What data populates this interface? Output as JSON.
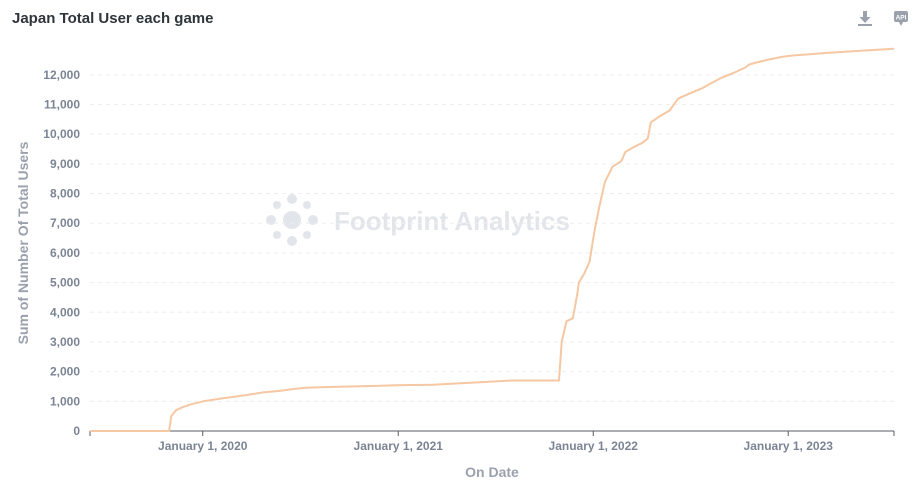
{
  "card": {
    "title": "Japan Total User each game",
    "toolbar": [
      {
        "name": "download-icon",
        "label": "Download"
      },
      {
        "name": "api-icon",
        "label": "API"
      }
    ]
  },
  "watermark": "Footprint Analytics",
  "chart_data": {
    "type": "line",
    "title": "Japan Total User each game",
    "xlabel": "On Date",
    "ylabel": "Sum of Number Of Total Users",
    "xlim": [
      "2019-06-04",
      "2023-07-18"
    ],
    "ylim": [
      0,
      12500
    ],
    "y_ticks": [
      0,
      1000,
      2000,
      3000,
      4000,
      5000,
      6000,
      7000,
      8000,
      9000,
      10000,
      11000,
      12000
    ],
    "y_tick_labels": [
      "0",
      "1,000",
      "2,000",
      "3,000",
      "4,000",
      "5,000",
      "6,000",
      "7,000",
      "8,000",
      "9,000",
      "10,000",
      "11,000",
      "12,000"
    ],
    "x_ticks": [
      "2020-01-01",
      "2021-01-01",
      "2022-01-01",
      "2023-01-01"
    ],
    "x_tick_labels": [
      "January 1, 2020",
      "January 1, 2021",
      "January 1, 2022",
      "January 1, 2023"
    ],
    "grid": true,
    "legend": "none",
    "color": "#f5c7a3",
    "series": [
      {
        "x": [
          "2019-06-04",
          "2019-10-30",
          "2019-11-03",
          "2019-11-12",
          "2019-11-24",
          "2019-12-10",
          "2020-01-02",
          "2020-02-06",
          "2020-03-19",
          "2020-04-23",
          "2020-05-24",
          "2020-06-21",
          "2020-07-12",
          "2020-08-14",
          "2020-10-01",
          "2020-11-23",
          "2020-12-26",
          "2021-03-06",
          "2021-04-19",
          "2021-06-12",
          "2021-08-01",
          "2021-09-25",
          "2021-10-29",
          "2021-11-03",
          "2021-11-12",
          "2021-11-24",
          "2021-12-03",
          "2021-12-05",
          "2021-12-15",
          "2021-12-25",
          "2022-01-04",
          "2022-01-13",
          "2022-01-23",
          "2022-02-06",
          "2022-02-23",
          "2022-03-02",
          "2022-03-16",
          "2022-04-02",
          "2022-04-13",
          "2022-04-19",
          "2022-05-05",
          "2022-05-24",
          "2022-06-09",
          "2022-06-28",
          "2022-07-24",
          "2022-08-08",
          "2022-08-29",
          "2022-09-25",
          "2022-10-13",
          "2022-10-20",
          "2022-11-03",
          "2022-11-27",
          "2022-12-19",
          "2022-12-27",
          "2023-01-09",
          "2023-02-13",
          "2023-03-15",
          "2023-05-24",
          "2023-07-18"
        ],
        "y": [
          0,
          0,
          500,
          700,
          800,
          900,
          1000,
          1100,
          1200,
          1300,
          1350,
          1420,
          1460,
          1480,
          1500,
          1520,
          1540,
          1560,
          1600,
          1650,
          1700,
          1700,
          1700,
          3000,
          3700,
          3800,
          4700,
          5000,
          5300,
          5700,
          6800,
          7600,
          8400,
          8900,
          9100,
          9400,
          9550,
          9700,
          9850,
          10400,
          10600,
          10800,
          11200,
          11350,
          11550,
          11700,
          11900,
          12100,
          12250,
          12350,
          12420,
          12520,
          12600,
          12620,
          12650,
          12700,
          12740,
          12820,
          12880
        ]
      }
    ]
  }
}
